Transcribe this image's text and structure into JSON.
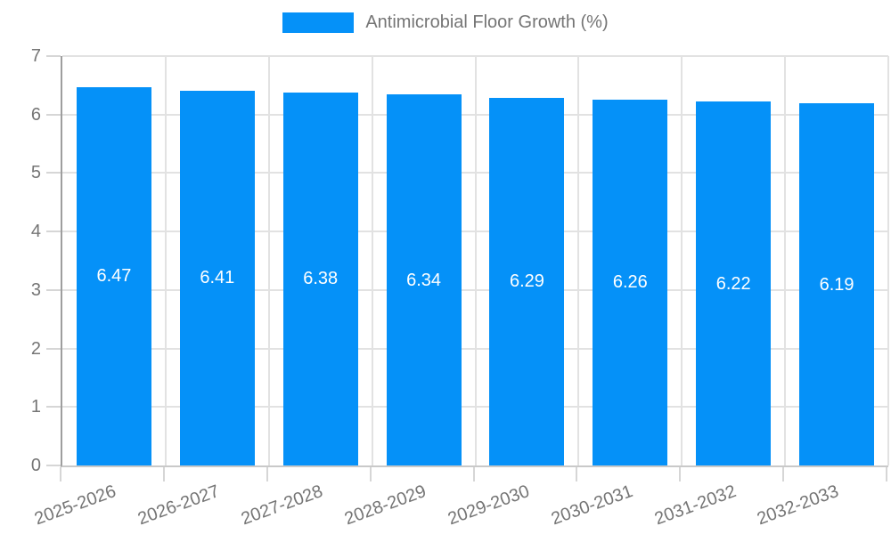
{
  "chart_data": {
    "type": "bar",
    "title": "Antimicrobial Floor Growth (%)",
    "categories": [
      "2025-2026",
      "2026-2027",
      "2027-2028",
      "2028-2029",
      "2029-2030",
      "2030-2031",
      "2031-2032",
      "2032-2033"
    ],
    "values": [
      6.47,
      6.41,
      6.38,
      6.34,
      6.29,
      6.26,
      6.22,
      6.19
    ],
    "value_labels": [
      "6.47",
      "6.41",
      "6.38",
      "6.34",
      "6.29",
      "6.26",
      "6.22",
      "6.19"
    ],
    "xlabel": "",
    "ylabel": "",
    "ylim": [
      0,
      7
    ],
    "yticks": [
      0,
      1,
      2,
      3,
      4,
      5,
      6,
      7
    ],
    "grid": true,
    "legend_position": "top-center",
    "legend_label": "Antimicrobial Floor Growth (%)",
    "bar_color": "#0591f8",
    "value_label_color": "#ffffff",
    "axis_text_color": "#757575",
    "x_tick_rotation_deg": -20
  }
}
